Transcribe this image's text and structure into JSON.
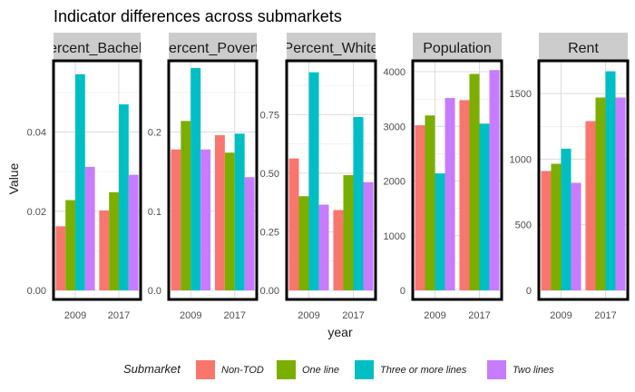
{
  "chart_data": {
    "type": "bar",
    "title": "Indicator differences across submarkets",
    "xlabel": "year",
    "ylabel": "Value",
    "categories": [
      "2009",
      "2017"
    ],
    "legend": {
      "title": "Submarket",
      "position": "bottom",
      "entries": [
        "Non-TOD",
        "One line",
        "Three or more lines",
        "Two lines"
      ]
    },
    "colors": [
      "#F8766D",
      "#7CAE00",
      "#00BFC4",
      "#C77CFF"
    ],
    "grid": true,
    "facets": [
      {
        "strip_label": "Percent_Bachelor",
        "ylim": [
          0,
          0.058
        ],
        "yticks": [
          0,
          0.02,
          0.04
        ],
        "ytick_labels": [
          "0.00",
          "0.02",
          "0.04"
        ],
        "series": [
          {
            "name": "Non-TOD",
            "values": [
              0.0162,
              0.0202
            ]
          },
          {
            "name": "One line",
            "values": [
              0.0228,
              0.0248
            ]
          },
          {
            "name": "Three or more lines",
            "values": [
              0.0546,
              0.047
            ]
          },
          {
            "name": "Two lines",
            "values": [
              0.0312,
              0.0292
            ]
          }
        ]
      },
      {
        "strip_label": "Percent_Poverty",
        "ylim": [
          0,
          0.29
        ],
        "yticks": [
          0,
          0.1,
          0.2
        ],
        "ytick_labels": [
          "0.0",
          "0.1",
          "0.2"
        ],
        "series": [
          {
            "name": "Non-TOD",
            "values": [
              0.178,
              0.196
            ]
          },
          {
            "name": "One line",
            "values": [
              0.214,
              0.174
            ]
          },
          {
            "name": "Three or more lines",
            "values": [
              0.281,
              0.198
            ]
          },
          {
            "name": "Two lines",
            "values": [
              0.178,
              0.143
            ]
          }
        ]
      },
      {
        "strip_label": "Percent_White",
        "ylim": [
          0,
          0.98
        ],
        "yticks": [
          0,
          0.25,
          0.5,
          0.75
        ],
        "ytick_labels": [
          "0.00",
          "0.25",
          "0.50",
          "0.75"
        ],
        "series": [
          {
            "name": "Non-TOD",
            "values": [
              0.563,
              0.343
            ]
          },
          {
            "name": "One line",
            "values": [
              0.402,
              0.492
            ]
          },
          {
            "name": "Three or more lines",
            "values": [
              0.931,
              0.74
            ]
          },
          {
            "name": "Two lines",
            "values": [
              0.366,
              0.462
            ]
          }
        ]
      },
      {
        "strip_label": "Population",
        "ylim": [
          0,
          4200
        ],
        "yticks": [
          0,
          1000,
          2000,
          3000,
          4000
        ],
        "ytick_labels": [
          "0",
          "1000",
          "2000",
          "3000",
          "4000"
        ],
        "series": [
          {
            "name": "Non-TOD",
            "values": [
              3020,
              3480
            ]
          },
          {
            "name": "One line",
            "values": [
              3200,
              3960
            ]
          },
          {
            "name": "Three or more lines",
            "values": [
              2140,
              3050
            ]
          },
          {
            "name": "Two lines",
            "values": [
              3520,
              4030
            ]
          }
        ]
      },
      {
        "strip_label": "Rent",
        "ylim": [
          0,
          1750
        ],
        "yticks": [
          0,
          500,
          1000,
          1500
        ],
        "ytick_labels": [
          "0",
          "500",
          "1000",
          "1500"
        ],
        "series": [
          {
            "name": "Non-TOD",
            "values": [
              910,
              1290
            ]
          },
          {
            "name": "One line",
            "values": [
              965,
              1470
            ]
          },
          {
            "name": "Three or more lines",
            "values": [
              1080,
              1670
            ]
          },
          {
            "name": "Two lines",
            "values": [
              820,
              1470
            ]
          }
        ]
      }
    ]
  }
}
